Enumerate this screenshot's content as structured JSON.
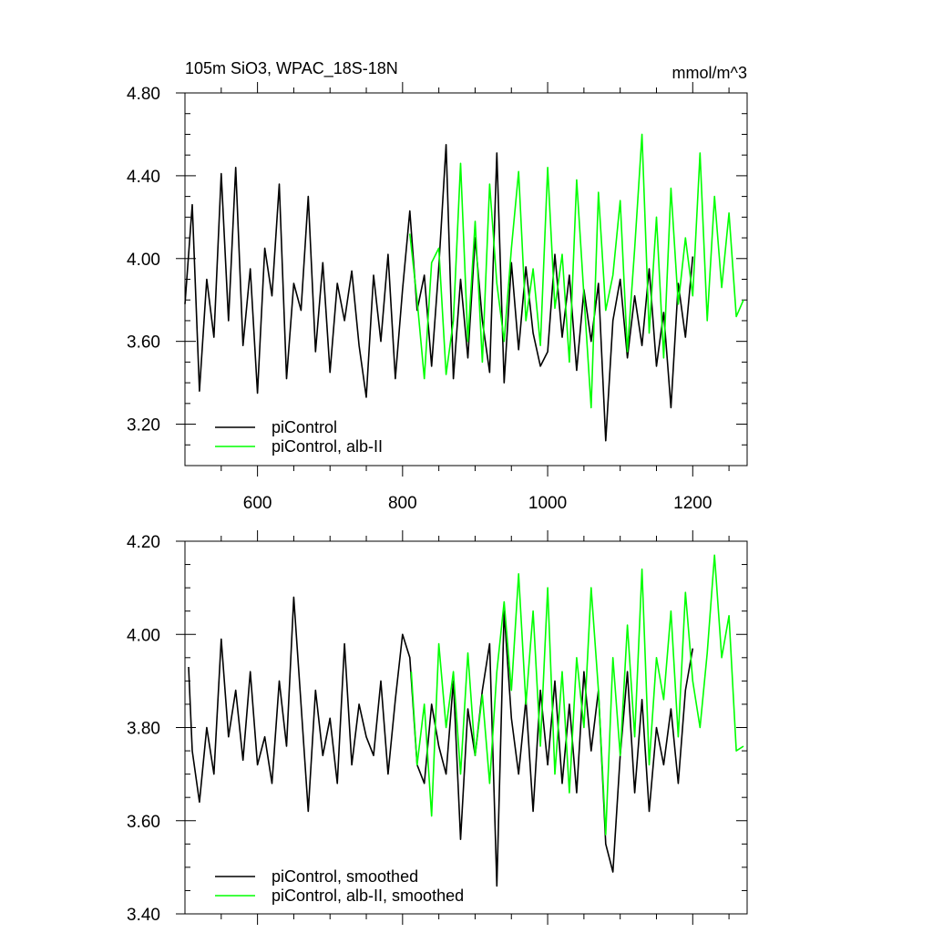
{
  "chart_data": [
    {
      "type": "line",
      "title": "105m SiO3, WPAC_18S-18N",
      "units": "mmol/m^3",
      "xlim": [
        500,
        1275
      ],
      "ylim": [
        3.0,
        4.8
      ],
      "xticks": [
        600,
        800,
        1000,
        1200
      ],
      "xtick_labels": [
        "600",
        "800",
        "1000",
        "1200"
      ],
      "yticks": [
        3.2,
        3.6,
        4.0,
        4.4,
        4.8
      ],
      "ytick_labels": [
        "3.20",
        "3.60",
        "4.00",
        "4.40",
        "4.80"
      ],
      "grid": false,
      "legend_position": "bottom-left",
      "series": [
        {
          "name": "piControl",
          "color": "#000000",
          "x": [
            500,
            510,
            520,
            530,
            540,
            550,
            560,
            570,
            580,
            590,
            600,
            610,
            620,
            630,
            640,
            650,
            660,
            670,
            680,
            690,
            700,
            710,
            720,
            730,
            740,
            750,
            760,
            770,
            780,
            790,
            800,
            810,
            820,
            830,
            840,
            850,
            860,
            870,
            880,
            890,
            900,
            910,
            920,
            930,
            940,
            950,
            960,
            970,
            980,
            990,
            1000,
            1010,
            1020,
            1030,
            1040,
            1050,
            1060,
            1070,
            1080,
            1090,
            1100,
            1110,
            1120,
            1130,
            1140,
            1150,
            1160,
            1170,
            1180,
            1190,
            1200
          ],
          "values": [
            3.78,
            4.26,
            3.36,
            3.9,
            3.62,
            4.41,
            3.7,
            4.44,
            3.58,
            3.95,
            3.35,
            4.05,
            3.82,
            4.36,
            3.42,
            3.88,
            3.75,
            4.3,
            3.55,
            3.98,
            3.45,
            3.88,
            3.7,
            3.94,
            3.58,
            3.33,
            3.92,
            3.6,
            4.02,
            3.42,
            3.85,
            4.23,
            3.75,
            3.92,
            3.48,
            3.96,
            4.55,
            3.42,
            3.9,
            3.52,
            4.1,
            3.7,
            3.45,
            4.51,
            3.4,
            3.98,
            3.56,
            3.96,
            3.64,
            3.48,
            3.55,
            4.02,
            3.62,
            3.92,
            3.46,
            3.85,
            3.6,
            3.88,
            3.12,
            3.7,
            3.9,
            3.52,
            3.82,
            3.58,
            3.95,
            3.48,
            3.74,
            3.28,
            3.88,
            3.62,
            4.01
          ]
        },
        {
          "name": "piControl, alb-II",
          "color": "#00ff00",
          "x": [
            810,
            820,
            830,
            840,
            850,
            860,
            870,
            880,
            890,
            900,
            910,
            920,
            930,
            940,
            950,
            960,
            970,
            980,
            990,
            1000,
            1010,
            1020,
            1030,
            1040,
            1050,
            1060,
            1070,
            1080,
            1090,
            1100,
            1110,
            1120,
            1130,
            1140,
            1150,
            1160,
            1170,
            1180,
            1190,
            1200,
            1210,
            1220,
            1230,
            1240,
            1250,
            1260,
            1270
          ],
          "values": [
            4.12,
            3.8,
            3.42,
            3.98,
            4.05,
            3.44,
            3.7,
            4.46,
            3.6,
            4.18,
            3.5,
            4.36,
            3.88,
            3.6,
            4.05,
            4.42,
            3.7,
            3.95,
            3.58,
            4.44,
            3.76,
            4.02,
            3.5,
            4.38,
            3.82,
            3.28,
            4.32,
            3.75,
            3.92,
            4.28,
            3.55,
            4.05,
            4.6,
            3.64,
            4.2,
            3.52,
            4.34,
            3.78,
            4.1,
            3.82,
            4.51,
            3.7,
            4.3,
            3.86,
            4.22,
            3.72,
            3.8
          ]
        }
      ]
    },
    {
      "type": "line",
      "xlim": [
        500,
        1275
      ],
      "ylim": [
        3.4,
        4.2
      ],
      "yticks": [
        3.4,
        3.6,
        3.8,
        4.0,
        4.2
      ],
      "ytick_labels": [
        "3.40",
        "3.60",
        "3.80",
        "4.00",
        "4.20"
      ],
      "grid": false,
      "legend_position": "bottom-left",
      "series": [
        {
          "name": "piControl, smoothed",
          "color": "#000000",
          "x": [
            505,
            510,
            520,
            530,
            540,
            550,
            560,
            570,
            580,
            590,
            600,
            610,
            620,
            630,
            640,
            650,
            660,
            670,
            680,
            690,
            700,
            710,
            720,
            730,
            740,
            750,
            760,
            770,
            780,
            790,
            800,
            810,
            820,
            830,
            840,
            850,
            860,
            870,
            880,
            890,
            900,
            910,
            920,
            930,
            940,
            950,
            960,
            970,
            980,
            990,
            1000,
            1010,
            1020,
            1030,
            1040,
            1050,
            1060,
            1070,
            1080,
            1090,
            1100,
            1110,
            1120,
            1130,
            1140,
            1150,
            1160,
            1170,
            1180,
            1190,
            1200
          ],
          "values": [
            3.93,
            3.75,
            3.64,
            3.8,
            3.7,
            3.99,
            3.78,
            3.88,
            3.73,
            3.92,
            3.72,
            3.78,
            3.68,
            3.9,
            3.76,
            4.08,
            3.85,
            3.62,
            3.88,
            3.74,
            3.82,
            3.68,
            3.98,
            3.72,
            3.85,
            3.78,
            3.74,
            3.9,
            3.7,
            3.86,
            4.0,
            3.95,
            3.72,
            3.68,
            3.85,
            3.76,
            3.7,
            3.9,
            3.56,
            3.84,
            3.74,
            3.88,
            3.98,
            3.46,
            4.05,
            3.82,
            3.7,
            3.86,
            3.62,
            3.88,
            3.72,
            3.9,
            3.68,
            3.85,
            3.66,
            3.92,
            3.75,
            3.88,
            3.55,
            3.49,
            3.74,
            3.92,
            3.66,
            3.86,
            3.62,
            3.8,
            3.72,
            3.84,
            3.68,
            3.88,
            3.97
          ]
        },
        {
          "name": "piControl, alb-II, smoothed",
          "color": "#00ff00",
          "x": [
            812,
            820,
            830,
            840,
            850,
            860,
            870,
            880,
            890,
            900,
            910,
            920,
            930,
            940,
            950,
            960,
            970,
            980,
            990,
            1000,
            1010,
            1020,
            1030,
            1040,
            1050,
            1060,
            1070,
            1080,
            1090,
            1100,
            1110,
            1120,
            1130,
            1140,
            1150,
            1160,
            1170,
            1180,
            1190,
            1200,
            1210,
            1220,
            1230,
            1240,
            1250,
            1260,
            1270
          ],
          "values": [
            3.92,
            3.72,
            3.85,
            3.61,
            3.98,
            3.8,
            3.92,
            3.7,
            3.96,
            3.74,
            3.87,
            3.68,
            3.92,
            4.07,
            3.88,
            4.13,
            3.85,
            4.05,
            3.76,
            4.1,
            3.7,
            3.92,
            3.66,
            3.95,
            3.8,
            4.1,
            3.88,
            3.57,
            3.95,
            3.74,
            4.02,
            3.78,
            4.14,
            3.72,
            3.95,
            3.86,
            4.05,
            3.78,
            4.09,
            3.9,
            3.8,
            3.96,
            4.17,
            3.95,
            4.04,
            3.75,
            3.76
          ]
        }
      ]
    }
  ]
}
